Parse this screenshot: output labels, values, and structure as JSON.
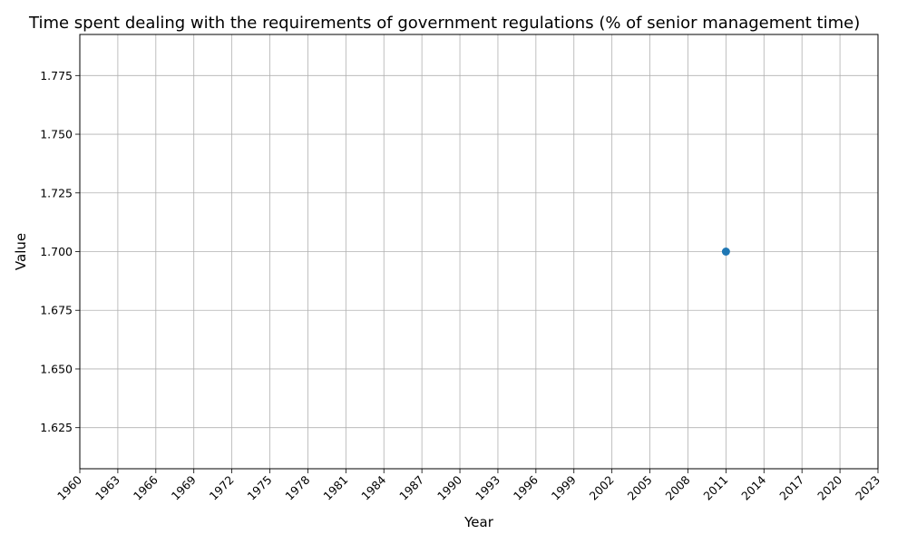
{
  "chart_data": {
    "type": "scatter",
    "title": "Time spent dealing with the requirements of government regulations (% of senior management time)",
    "xlabel": "Year",
    "ylabel": "Value",
    "xlim": [
      1960,
      2023
    ],
    "ylim": [
      1.6075,
      1.7925
    ],
    "x_ticks": [
      1960,
      1963,
      1966,
      1969,
      1972,
      1975,
      1978,
      1981,
      1984,
      1987,
      1990,
      1993,
      1996,
      1999,
      2002,
      2005,
      2008,
      2011,
      2014,
      2017,
      2020,
      2023
    ],
    "y_ticks": [
      1.625,
      1.65,
      1.675,
      1.7,
      1.725,
      1.75,
      1.775
    ],
    "y_tick_labels": [
      "1.625",
      "1.650",
      "1.675",
      "1.700",
      "1.725",
      "1.750",
      "1.775"
    ],
    "x_tick_rotation_deg": -45,
    "grid": true,
    "legend": "none",
    "series": [
      {
        "points": [
          {
            "x": 2011,
            "y": 1.7
          }
        ],
        "color": "#1f77b4",
        "marker": "circle"
      }
    ]
  }
}
